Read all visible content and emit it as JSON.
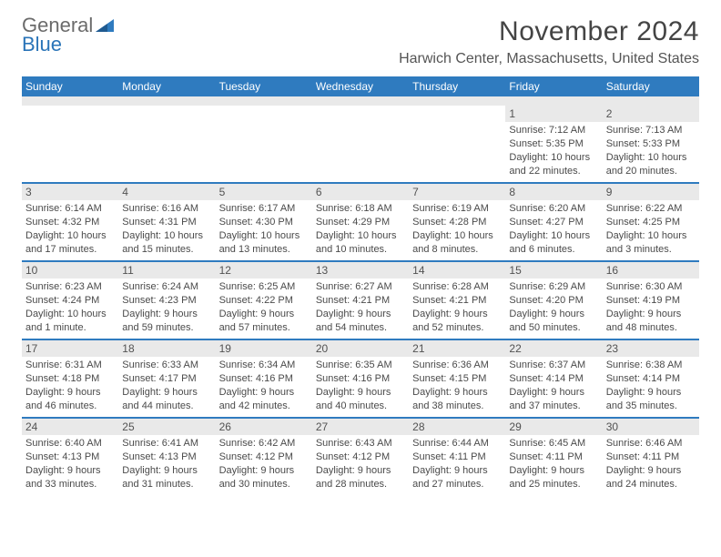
{
  "logo": {
    "word1": "General",
    "word2": "Blue",
    "word1_color": "#6b6b6b",
    "word2_color": "#2a74b8",
    "triangle_color": "#2f7bbf"
  },
  "title": {
    "month": "November 2024",
    "location": "Harwich Center, Massachusetts, United States",
    "month_color": "#444444",
    "location_color": "#555555"
  },
  "style": {
    "header_bg": "#2f7bbf",
    "header_fg": "#ffffff",
    "daynum_bg": "#e9e9e9",
    "daynum_fg": "#525252",
    "row_border": "#2f7bbf",
    "body_fg": "#4a4a4a"
  },
  "days_of_week": [
    "Sunday",
    "Monday",
    "Tuesday",
    "Wednesday",
    "Thursday",
    "Friday",
    "Saturday"
  ],
  "weeks": [
    [
      {
        "empty": true
      },
      {
        "empty": true
      },
      {
        "empty": true
      },
      {
        "empty": true
      },
      {
        "empty": true
      },
      {
        "num": "1",
        "sunrise": "Sunrise: 7:12 AM",
        "sunset": "Sunset: 5:35 PM",
        "day1": "Daylight: 10 hours",
        "day2": "and 22 minutes."
      },
      {
        "num": "2",
        "sunrise": "Sunrise: 7:13 AM",
        "sunset": "Sunset: 5:33 PM",
        "day1": "Daylight: 10 hours",
        "day2": "and 20 minutes."
      }
    ],
    [
      {
        "num": "3",
        "sunrise": "Sunrise: 6:14 AM",
        "sunset": "Sunset: 4:32 PM",
        "day1": "Daylight: 10 hours",
        "day2": "and 17 minutes."
      },
      {
        "num": "4",
        "sunrise": "Sunrise: 6:16 AM",
        "sunset": "Sunset: 4:31 PM",
        "day1": "Daylight: 10 hours",
        "day2": "and 15 minutes."
      },
      {
        "num": "5",
        "sunrise": "Sunrise: 6:17 AM",
        "sunset": "Sunset: 4:30 PM",
        "day1": "Daylight: 10 hours",
        "day2": "and 13 minutes."
      },
      {
        "num": "6",
        "sunrise": "Sunrise: 6:18 AM",
        "sunset": "Sunset: 4:29 PM",
        "day1": "Daylight: 10 hours",
        "day2": "and 10 minutes."
      },
      {
        "num": "7",
        "sunrise": "Sunrise: 6:19 AM",
        "sunset": "Sunset: 4:28 PM",
        "day1": "Daylight: 10 hours",
        "day2": "and 8 minutes."
      },
      {
        "num": "8",
        "sunrise": "Sunrise: 6:20 AM",
        "sunset": "Sunset: 4:27 PM",
        "day1": "Daylight: 10 hours",
        "day2": "and 6 minutes."
      },
      {
        "num": "9",
        "sunrise": "Sunrise: 6:22 AM",
        "sunset": "Sunset: 4:25 PM",
        "day1": "Daylight: 10 hours",
        "day2": "and 3 minutes."
      }
    ],
    [
      {
        "num": "10",
        "sunrise": "Sunrise: 6:23 AM",
        "sunset": "Sunset: 4:24 PM",
        "day1": "Daylight: 10 hours",
        "day2": "and 1 minute."
      },
      {
        "num": "11",
        "sunrise": "Sunrise: 6:24 AM",
        "sunset": "Sunset: 4:23 PM",
        "day1": "Daylight: 9 hours",
        "day2": "and 59 minutes."
      },
      {
        "num": "12",
        "sunrise": "Sunrise: 6:25 AM",
        "sunset": "Sunset: 4:22 PM",
        "day1": "Daylight: 9 hours",
        "day2": "and 57 minutes."
      },
      {
        "num": "13",
        "sunrise": "Sunrise: 6:27 AM",
        "sunset": "Sunset: 4:21 PM",
        "day1": "Daylight: 9 hours",
        "day2": "and 54 minutes."
      },
      {
        "num": "14",
        "sunrise": "Sunrise: 6:28 AM",
        "sunset": "Sunset: 4:21 PM",
        "day1": "Daylight: 9 hours",
        "day2": "and 52 minutes."
      },
      {
        "num": "15",
        "sunrise": "Sunrise: 6:29 AM",
        "sunset": "Sunset: 4:20 PM",
        "day1": "Daylight: 9 hours",
        "day2": "and 50 minutes."
      },
      {
        "num": "16",
        "sunrise": "Sunrise: 6:30 AM",
        "sunset": "Sunset: 4:19 PM",
        "day1": "Daylight: 9 hours",
        "day2": "and 48 minutes."
      }
    ],
    [
      {
        "num": "17",
        "sunrise": "Sunrise: 6:31 AM",
        "sunset": "Sunset: 4:18 PM",
        "day1": "Daylight: 9 hours",
        "day2": "and 46 minutes."
      },
      {
        "num": "18",
        "sunrise": "Sunrise: 6:33 AM",
        "sunset": "Sunset: 4:17 PM",
        "day1": "Daylight: 9 hours",
        "day2": "and 44 minutes."
      },
      {
        "num": "19",
        "sunrise": "Sunrise: 6:34 AM",
        "sunset": "Sunset: 4:16 PM",
        "day1": "Daylight: 9 hours",
        "day2": "and 42 minutes."
      },
      {
        "num": "20",
        "sunrise": "Sunrise: 6:35 AM",
        "sunset": "Sunset: 4:16 PM",
        "day1": "Daylight: 9 hours",
        "day2": "and 40 minutes."
      },
      {
        "num": "21",
        "sunrise": "Sunrise: 6:36 AM",
        "sunset": "Sunset: 4:15 PM",
        "day1": "Daylight: 9 hours",
        "day2": "and 38 minutes."
      },
      {
        "num": "22",
        "sunrise": "Sunrise: 6:37 AM",
        "sunset": "Sunset: 4:14 PM",
        "day1": "Daylight: 9 hours",
        "day2": "and 37 minutes."
      },
      {
        "num": "23",
        "sunrise": "Sunrise: 6:38 AM",
        "sunset": "Sunset: 4:14 PM",
        "day1": "Daylight: 9 hours",
        "day2": "and 35 minutes."
      }
    ],
    [
      {
        "num": "24",
        "sunrise": "Sunrise: 6:40 AM",
        "sunset": "Sunset: 4:13 PM",
        "day1": "Daylight: 9 hours",
        "day2": "and 33 minutes."
      },
      {
        "num": "25",
        "sunrise": "Sunrise: 6:41 AM",
        "sunset": "Sunset: 4:13 PM",
        "day1": "Daylight: 9 hours",
        "day2": "and 31 minutes."
      },
      {
        "num": "26",
        "sunrise": "Sunrise: 6:42 AM",
        "sunset": "Sunset: 4:12 PM",
        "day1": "Daylight: 9 hours",
        "day2": "and 30 minutes."
      },
      {
        "num": "27",
        "sunrise": "Sunrise: 6:43 AM",
        "sunset": "Sunset: 4:12 PM",
        "day1": "Daylight: 9 hours",
        "day2": "and 28 minutes."
      },
      {
        "num": "28",
        "sunrise": "Sunrise: 6:44 AM",
        "sunset": "Sunset: 4:11 PM",
        "day1": "Daylight: 9 hours",
        "day2": "and 27 minutes."
      },
      {
        "num": "29",
        "sunrise": "Sunrise: 6:45 AM",
        "sunset": "Sunset: 4:11 PM",
        "day1": "Daylight: 9 hours",
        "day2": "and 25 minutes."
      },
      {
        "num": "30",
        "sunrise": "Sunrise: 6:46 AM",
        "sunset": "Sunset: 4:11 PM",
        "day1": "Daylight: 9 hours",
        "day2": "and 24 minutes."
      }
    ]
  ]
}
